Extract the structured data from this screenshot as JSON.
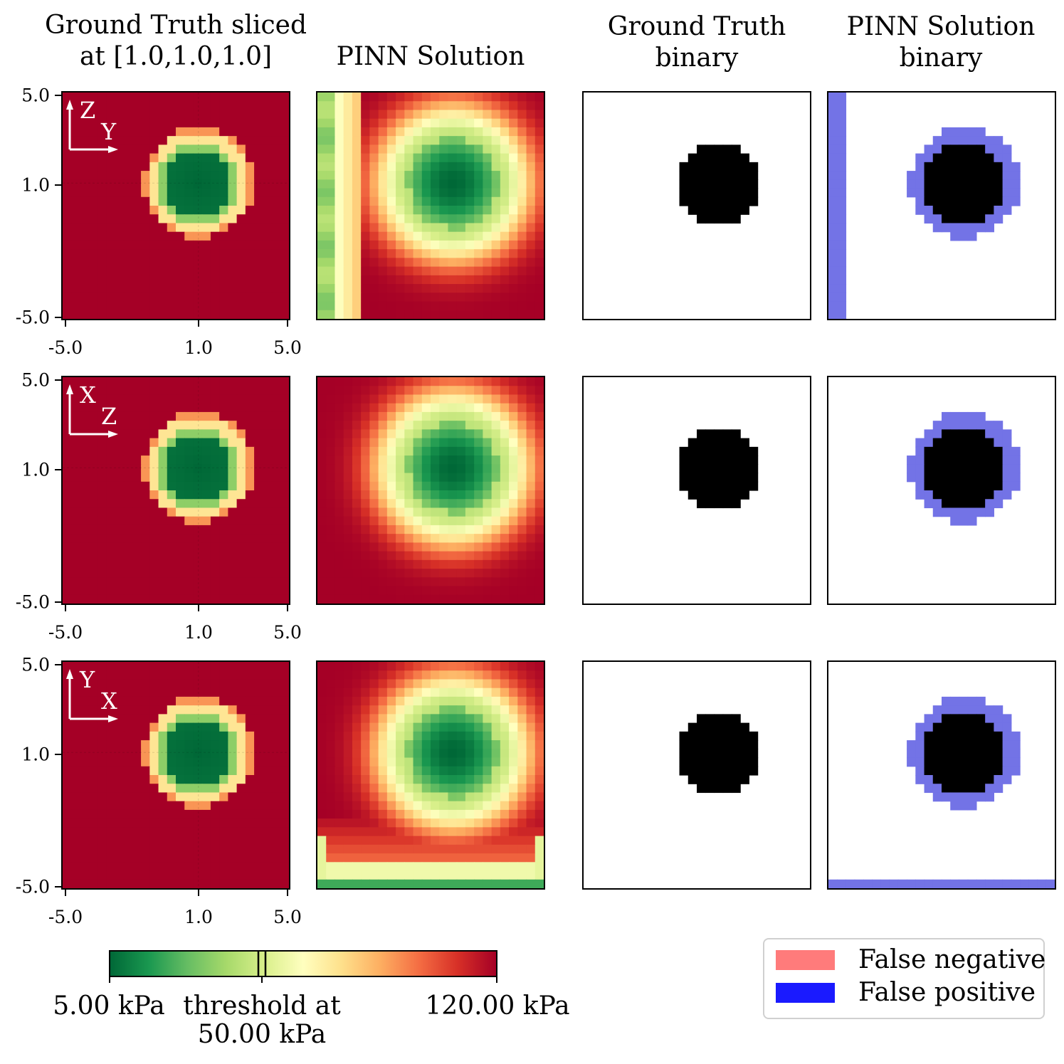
{
  "titles": {
    "col1": [
      "Ground Truth sliced",
      "at [1.0,1.0,1.0]"
    ],
    "col2": "PINN Solution",
    "col3": [
      "Ground Truth",
      "binary"
    ],
    "col4": [
      "PINN Solution",
      "binary"
    ]
  },
  "rows": [
    {
      "axis_v": "Z",
      "axis_h": "Y"
    },
    {
      "axis_v": "X",
      "axis_h": "Z"
    },
    {
      "axis_v": "Y",
      "axis_h": "X"
    }
  ],
  "x_ticks": [
    "-5.0",
    "1.0",
    "5.0"
  ],
  "y_ticks": [
    "5.0",
    "1.0",
    "-5.0"
  ],
  "colorbar": {
    "min_label": "5.00 kPa",
    "max_label": "120.00 kPa",
    "threshold_label_line1": "threshold at",
    "threshold_label_line2": "50.00 kPa"
  },
  "legend": {
    "false_negative": "False negative",
    "false_positive": "False positive",
    "false_negative_color": "#ff7b7b",
    "false_positive_color": "#1a1aff"
  },
  "chart_data": {
    "type": "heatmap",
    "grid": {
      "nx": 26,
      "ny": 26
    },
    "axes": {
      "x_range": [
        -5.0,
        5.0
      ],
      "y_range": [
        -5.0,
        5.0
      ],
      "x_ticks": [
        -5.0,
        1.0,
        5.0
      ],
      "y_ticks": [
        -5.0,
        1.0,
        5.0
      ]
    },
    "slice_point": [
      1.0,
      1.0,
      1.0
    ],
    "colormap": "RdYlGn_r",
    "value_range_kpa": [
      5.0,
      120.0
    ],
    "threshold_kpa": 50.0,
    "inclusion": {
      "center": [
        1.0,
        1.0
      ],
      "radius": 2.0,
      "inside_kpa": 5.0,
      "background_kpa": 120.0
    },
    "panels": [
      {
        "row": "Z-Y",
        "pinn_artifact": "left-edge"
      },
      {
        "row": "X-Z",
        "pinn_artifact": "none"
      },
      {
        "row": "Y-X",
        "pinn_artifact": "bottom-edge"
      }
    ]
  }
}
